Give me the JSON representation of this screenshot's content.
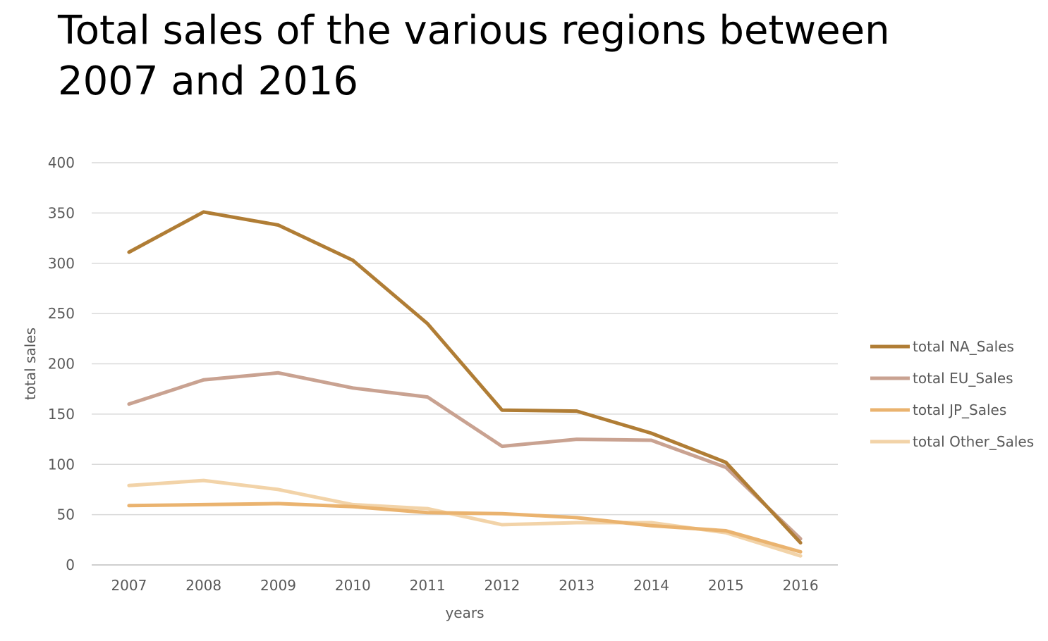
{
  "chart_data": {
    "type": "line",
    "title": "Total sales of the various regions between 2007 and 2016",
    "xlabel": "years",
    "ylabel": "total sales",
    "ylim": [
      0,
      400
    ],
    "yticks": [
      0,
      50,
      100,
      150,
      200,
      250,
      300,
      350,
      400
    ],
    "categories": [
      "2007",
      "2008",
      "2009",
      "2010",
      "2011",
      "2012",
      "2013",
      "2014",
      "2015",
      "2016"
    ],
    "grid": true,
    "legend_position": "right",
    "series": [
      {
        "name": "total NA_Sales",
        "color": "#B07D35",
        "values": [
          311,
          351,
          338,
          303,
          240,
          154,
          153,
          131,
          102,
          22
        ]
      },
      {
        "name": "total EU_Sales",
        "color": "#C9A291",
        "values": [
          160,
          184,
          191,
          176,
          167,
          118,
          125,
          124,
          97,
          26
        ]
      },
      {
        "name": "total JP_Sales",
        "color": "#EAB36F",
        "values": [
          59,
          60,
          61,
          58,
          52,
          51,
          47,
          39,
          34,
          13
        ]
      },
      {
        "name": "total Other_Sales",
        "color": "#F2D3A8",
        "values": [
          79,
          84,
          75,
          60,
          56,
          40,
          42,
          42,
          32,
          9
        ]
      }
    ]
  }
}
